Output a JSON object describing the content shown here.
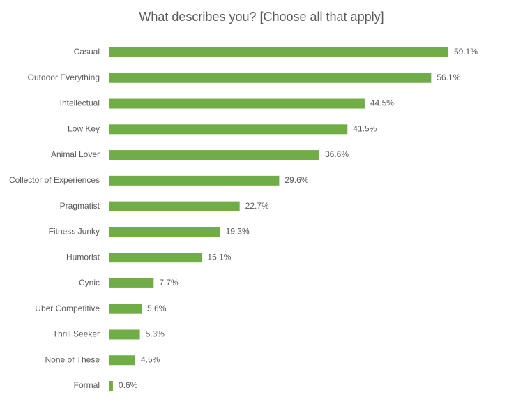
{
  "chart_data": {
    "type": "barh",
    "title": "What describes you? [Choose all that apply]",
    "categories": [
      "Casual",
      "Outdoor Everything",
      "Intellectual",
      "Low Key",
      "Animal Lover",
      "Collector of Experiences",
      "Pragmatist",
      "Fitness Junky",
      "Humorist",
      "Cynic",
      "Uber Competitive",
      "Thrill Seeker",
      "None of These",
      "Formal"
    ],
    "values": [
      59.1,
      56.1,
      44.5,
      41.5,
      36.6,
      29.6,
      22.7,
      19.3,
      16.1,
      7.7,
      5.6,
      5.3,
      4.5,
      0.6
    ],
    "value_labels": [
      "59.1%",
      "56.1%",
      "44.5%",
      "41.5%",
      "36.6%",
      "29.6%",
      "22.7%",
      "19.3%",
      "16.1%",
      "7.7%",
      "5.6%",
      "5.3%",
      "4.5%",
      "0.6%"
    ],
    "color": "#70ad47"
  }
}
